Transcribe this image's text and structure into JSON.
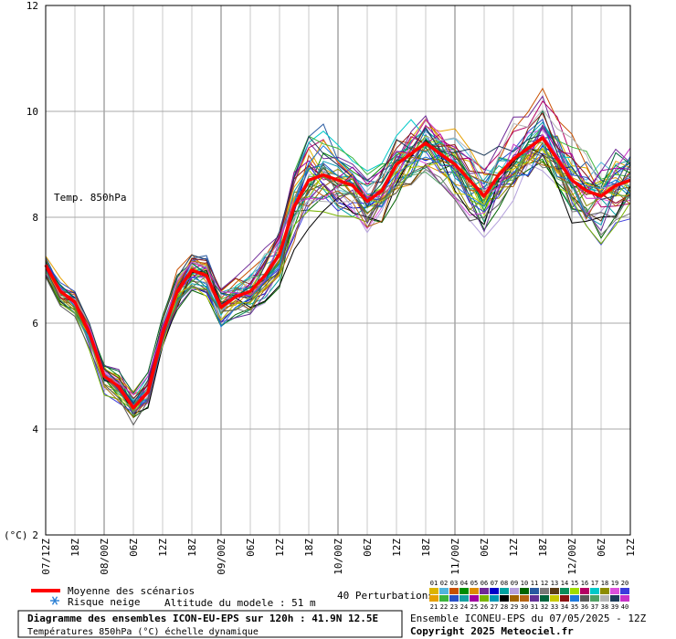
{
  "chart_data": {
    "type": "line",
    "ylabel": "(°C)",
    "ylim": [
      2,
      12
    ],
    "yticks": [
      2,
      4,
      6,
      8,
      10,
      12
    ],
    "grid": true,
    "series_label": "Temp. 850hPa",
    "xlim": [
      0,
      120
    ],
    "xticks": [
      {
        "h": 0,
        "label": "07/12Z"
      },
      {
        "h": 6,
        "label": "18Z"
      },
      {
        "h": 12,
        "label": "08/00Z"
      },
      {
        "h": 18,
        "label": "06Z"
      },
      {
        "h": 24,
        "label": "12Z"
      },
      {
        "h": 30,
        "label": "18Z"
      },
      {
        "h": 36,
        "label": "09/00Z"
      },
      {
        "h": 42,
        "label": "06Z"
      },
      {
        "h": 48,
        "label": "12Z"
      },
      {
        "h": 54,
        "label": "18Z"
      },
      {
        "h": 60,
        "label": "10/00Z"
      },
      {
        "h": 66,
        "label": "06Z"
      },
      {
        "h": 72,
        "label": "12Z"
      },
      {
        "h": 78,
        "label": "18Z"
      },
      {
        "h": 84,
        "label": "11/00Z"
      },
      {
        "h": 90,
        "label": "06Z"
      },
      {
        "h": 96,
        "label": "12Z"
      },
      {
        "h": 102,
        "label": "18Z"
      },
      {
        "h": 108,
        "label": "12/00Z"
      },
      {
        "h": 114,
        "label": "06Z"
      },
      {
        "h": 120,
        "label": "12Z"
      }
    ],
    "mean_color": "#ff0000",
    "mean": {
      "name": "Moyenne des scénarios",
      "x": [
        0,
        3,
        6,
        9,
        12,
        15,
        18,
        21,
        24,
        27,
        30,
        33,
        36,
        39,
        42,
        45,
        48,
        51,
        54,
        57,
        60,
        63,
        66,
        69,
        72,
        75,
        78,
        81,
        84,
        87,
        90,
        93,
        96,
        99,
        102,
        105,
        108,
        111,
        114,
        117,
        120
      ],
      "y": [
        7.1,
        6.6,
        6.4,
        5.8,
        5.0,
        4.8,
        4.4,
        4.7,
        5.8,
        6.6,
        7.0,
        6.9,
        6.3,
        6.5,
        6.6,
        6.9,
        7.3,
        8.2,
        8.7,
        8.8,
        8.7,
        8.6,
        8.3,
        8.5,
        9.0,
        9.2,
        9.4,
        9.2,
        9.0,
        8.7,
        8.4,
        8.8,
        9.1,
        9.3,
        9.5,
        9.1,
        8.7,
        8.5,
        8.4,
        8.6,
        8.7
      ]
    },
    "perturbation_x": [
      0,
      3,
      6,
      9,
      12,
      15,
      18,
      21,
      24,
      27,
      30,
      33,
      36,
      39,
      42,
      45,
      48,
      51,
      54,
      57,
      60,
      63,
      66,
      69,
      72,
      75,
      78,
      81,
      84,
      87,
      90,
      93,
      96,
      99,
      102,
      105,
      108,
      111,
      114,
      117,
      120
    ],
    "perturbation_profile": [
      7.1,
      6.6,
      6.4,
      5.8,
      5.0,
      4.8,
      4.4,
      4.7,
      5.8,
      6.6,
      7.0,
      6.9,
      6.3,
      6.5,
      6.6,
      6.9,
      7.3,
      8.2,
      8.7,
      8.8,
      8.7,
      8.6,
      8.3,
      8.5,
      9.0,
      9.2,
      9.4,
      9.2,
      9.0,
      8.7,
      8.4,
      8.8,
      9.1,
      9.3,
      9.5,
      9.1,
      8.7,
      8.5,
      8.4,
      8.6,
      8.7
    ],
    "perturbation_count": 40,
    "member_colors": [
      "#dcb400",
      "#50b4dc",
      "#c85000",
      "#008c00",
      "#dc8c00",
      "#6e2896",
      "#0000c8",
      "#00a0a0",
      "#b4a0dc",
      "#006400",
      "#285aa0",
      "#787878",
      "#5a3c14",
      "#0a8c5a",
      "#a0dc00",
      "#b40064",
      "#00c8c8",
      "#8c8c00",
      "#dc50dc",
      "#3c3cdc",
      "#e6a000",
      "#3cb43c",
      "#2850c8",
      "#14a0a0",
      "#a000a0",
      "#78b400",
      "#0096b4",
      "#000000",
      "#a06400",
      "#b46414",
      "#643296",
      "#00643c",
      "#c8c800",
      "#8c1414",
      "#1e78dc",
      "#5a5a5a",
      "#50a064",
      "#b4b4b4",
      "#1e3c5a",
      "#c832c8"
    ]
  },
  "legend": {
    "mean_label": "Moyenne des scénarios",
    "snow_label": "Risque neige",
    "altitude_label": "Altitude du modele : 51 m",
    "perturbations_label": "40 Perturbations",
    "grid_top_numbers": [
      "01",
      "02",
      "03",
      "04",
      "05",
      "06",
      "07",
      "08",
      "09",
      "10",
      "11",
      "12",
      "13",
      "14",
      "15",
      "16",
      "17",
      "18",
      "19",
      "20"
    ],
    "grid_bottom_numbers": [
      "21",
      "22",
      "23",
      "24",
      "25",
      "26",
      "27",
      "28",
      "29",
      "30",
      "31",
      "32",
      "33",
      "34",
      "35",
      "36",
      "37",
      "38",
      "39",
      "40"
    ]
  },
  "footer": {
    "title": "Diagramme des ensembles ICON-EU-EPS sur 120h : 41.9N 12.5E",
    "subtitle": "Températures 850hPa (°C) échelle dynamique",
    "run_info": "Ensemble ICONEU-EPS du 07/05/2025 - 12Z",
    "copyright": "Copyright 2025 Meteociel.fr"
  }
}
